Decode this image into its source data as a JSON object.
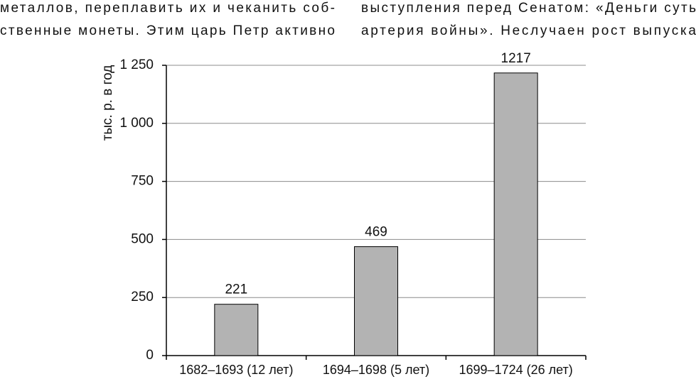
{
  "text_columns": [
    [
      "металлов, переплавить их и чеканить соб-",
      "ственные монеты. Этим царь Петр активно"
    ],
    [
      "выступления перед Сенатом: «Деньги суть",
      "артерия войны». Неслучаен рост выпуска"
    ]
  ],
  "chart_data": {
    "type": "bar",
    "y_label": "тыс. р. в год",
    "categories": [
      "1682–1693 (12 лет)",
      "1694–1698 (5 лет)",
      "1699–1724 (26 лет)"
    ],
    "values": [
      221,
      469,
      1217
    ],
    "color": "#b3b3b3",
    "ylim": [
      0,
      1250
    ],
    "yticks": [
      0,
      250,
      500,
      750,
      {
        "value": 1000,
        "label": "1 000"
      },
      {
        "value": 1250,
        "label": "1 250"
      }
    ],
    "grid": true
  }
}
